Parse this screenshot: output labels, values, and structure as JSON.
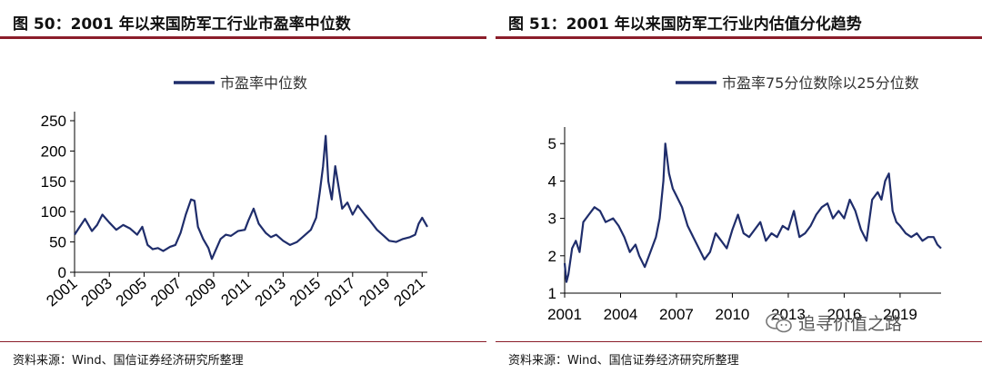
{
  "panels": [
    {
      "title": "图 50：2001 年以来国防军工行业市盈率中位数",
      "source": "资料来源：Wind、国信证券经济研究所整理"
    },
    {
      "title": "图 51：2001 年以来国防军工行业内估值分化趋势",
      "source": "资料来源：Wind、国信证券经济研究所整理"
    }
  ],
  "watermark": "追寻价值之路",
  "chart_data": [
    {
      "type": "line",
      "legend": "市盈率中位数",
      "series": [
        {
          "name": "市盈率中位数",
          "color": "#1F2D6B",
          "x": [
            2001.0,
            2001.3,
            2001.6,
            2002.0,
            2002.3,
            2002.6,
            2003.0,
            2003.4,
            2003.8,
            2004.2,
            2004.6,
            2004.9,
            2005.2,
            2005.5,
            2005.8,
            2006.1,
            2006.5,
            2006.8,
            2007.1,
            2007.4,
            2007.7,
            2007.9,
            2008.1,
            2008.4,
            2008.7,
            2008.9,
            2009.1,
            2009.4,
            2009.7,
            2010.0,
            2010.4,
            2010.8,
            2011.0,
            2011.3,
            2011.6,
            2012.0,
            2012.3,
            2012.6,
            2013.0,
            2013.4,
            2013.8,
            2014.2,
            2014.6,
            2014.9,
            2015.1,
            2015.3,
            2015.45,
            2015.6,
            2015.8,
            2016.0,
            2016.2,
            2016.4,
            2016.7,
            2017.0,
            2017.3,
            2017.7,
            2018.0,
            2018.4,
            2018.8,
            2019.1,
            2019.5,
            2019.9,
            2020.3,
            2020.6,
            2020.8,
            2021.0,
            2021.3
          ],
          "values": [
            62,
            75,
            88,
            68,
            78,
            95,
            82,
            70,
            78,
            72,
            62,
            75,
            45,
            38,
            40,
            35,
            42,
            45,
            65,
            95,
            120,
            118,
            75,
            55,
            40,
            22,
            35,
            55,
            62,
            60,
            68,
            70,
            85,
            105,
            80,
            65,
            58,
            62,
            52,
            45,
            50,
            60,
            70,
            90,
            130,
            175,
            225,
            150,
            120,
            175,
            140,
            105,
            115,
            95,
            110,
            95,
            85,
            70,
            60,
            52,
            50,
            55,
            58,
            62,
            80,
            90,
            75
          ],
          "ylim": [
            0,
            250
          ],
          "yticks": [
            0,
            50,
            100,
            150,
            200,
            250
          ],
          "xticks": [
            "2001",
            "2003",
            "2005",
            "2007",
            "2009",
            "2011",
            "2013",
            "2015",
            "2017",
            "2019",
            "2021"
          ],
          "xlim": [
            2001,
            2021.3
          ]
        }
      ]
    },
    {
      "type": "line",
      "legend": "市盈率75分位数除以25分位数",
      "series": [
        {
          "name": "市盈率75分位数除以25分位数",
          "color": "#1F2D6B",
          "x": [
            2001.0,
            2001.1,
            2001.2,
            2001.4,
            2001.6,
            2001.8,
            2002.0,
            2002.3,
            2002.6,
            2002.9,
            2003.2,
            2003.6,
            2003.9,
            2004.2,
            2004.5,
            2004.8,
            2005.0,
            2005.3,
            2005.6,
            2005.9,
            2006.1,
            2006.3,
            2006.4,
            2006.6,
            2006.8,
            2007.0,
            2007.3,
            2007.6,
            2007.9,
            2008.2,
            2008.5,
            2008.8,
            2009.1,
            2009.4,
            2009.7,
            2010.0,
            2010.3,
            2010.6,
            2010.9,
            2011.2,
            2011.5,
            2011.8,
            2012.1,
            2012.4,
            2012.7,
            2013.0,
            2013.3,
            2013.6,
            2013.9,
            2014.2,
            2014.5,
            2014.8,
            2015.1,
            2015.4,
            2015.7,
            2016.0,
            2016.3,
            2016.6,
            2016.9,
            2017.2,
            2017.5,
            2017.8,
            2018.0,
            2018.2,
            2018.4,
            2018.6,
            2018.8,
            2019.0,
            2019.3,
            2019.6,
            2019.9,
            2020.2,
            2020.5,
            2020.8,
            2021.0,
            2021.2
          ],
          "values": [
            1.8,
            1.3,
            1.5,
            2.2,
            2.4,
            2.1,
            2.9,
            3.1,
            3.3,
            3.2,
            2.9,
            3.0,
            2.8,
            2.5,
            2.1,
            2.3,
            2.0,
            1.7,
            2.1,
            2.5,
            3.0,
            4.0,
            5.0,
            4.2,
            3.8,
            3.6,
            3.3,
            2.8,
            2.5,
            2.2,
            1.9,
            2.1,
            2.6,
            2.4,
            2.2,
            2.7,
            3.1,
            2.6,
            2.5,
            2.7,
            2.9,
            2.4,
            2.6,
            2.5,
            2.8,
            2.7,
            3.2,
            2.5,
            2.6,
            2.8,
            3.1,
            3.3,
            3.4,
            3.0,
            3.2,
            3.0,
            3.5,
            3.2,
            2.7,
            2.4,
            3.5,
            3.7,
            3.5,
            4.0,
            4.2,
            3.2,
            2.9,
            2.8,
            2.6,
            2.5,
            2.6,
            2.4,
            2.5,
            2.5,
            2.3,
            2.2
          ],
          "ylim": [
            1,
            5.2
          ],
          "yticks": [
            1,
            2,
            3,
            4,
            5
          ],
          "xticks": [
            "2001",
            "2004",
            "2007",
            "2010",
            "2013",
            "2016",
            "2019"
          ],
          "xlim": [
            2001,
            2021.2
          ]
        }
      ]
    }
  ]
}
